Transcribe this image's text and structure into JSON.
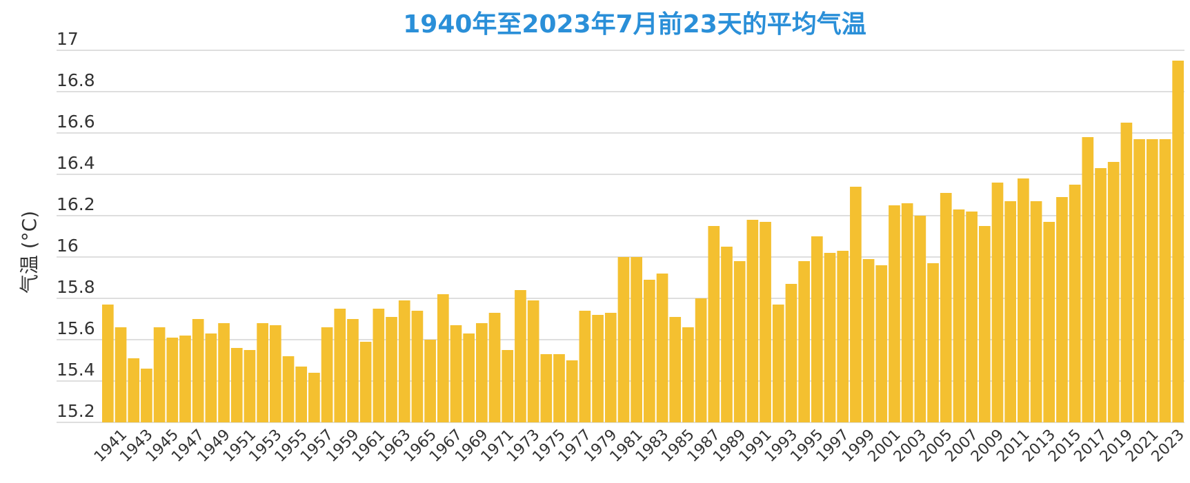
{
  "chart_data": {
    "type": "bar",
    "title": "1940年至2023年7月前23天的平均气温",
    "ylabel": "气温 (°C)",
    "xlabel": "",
    "ylim": [
      15.2,
      17.0
    ],
    "yticks": [
      "15.2",
      "15.4",
      "15.6",
      "15.8",
      "16",
      "16.2",
      "16.4",
      "16.6",
      "16.8",
      "17"
    ],
    "grid": true,
    "bar_color": "#f4c030",
    "title_color": "#2a8fd8",
    "categories": [
      "1940",
      "1941",
      "1942",
      "1943",
      "1944",
      "1945",
      "1946",
      "1947",
      "1948",
      "1949",
      "1950",
      "1951",
      "1952",
      "1953",
      "1954",
      "1955",
      "1956",
      "1957",
      "1958",
      "1959",
      "1960",
      "1961",
      "1962",
      "1963",
      "1964",
      "1965",
      "1966",
      "1967",
      "1968",
      "1969",
      "1970",
      "1971",
      "1972",
      "1973",
      "1974",
      "1975",
      "1976",
      "1977",
      "1978",
      "1979",
      "1980",
      "1981",
      "1982",
      "1983",
      "1984",
      "1985",
      "1986",
      "1987",
      "1988",
      "1989",
      "1990",
      "1991",
      "1992",
      "1993",
      "1994",
      "1995",
      "1996",
      "1997",
      "1998",
      "1999",
      "2000",
      "2001",
      "2002",
      "2003",
      "2004",
      "2005",
      "2006",
      "2007",
      "2008",
      "2009",
      "2010",
      "2011",
      "2012",
      "2013",
      "2014",
      "2015",
      "2016",
      "2017",
      "2018",
      "2019",
      "2020",
      "2021",
      "2022",
      "2023"
    ],
    "x_tick_labels": [
      "1941",
      "1943",
      "1945",
      "1947",
      "1949",
      "1951",
      "1953",
      "1955",
      "1957",
      "1959",
      "1961",
      "1963",
      "1965",
      "1967",
      "1969",
      "1971",
      "1973",
      "1975",
      "1977",
      "1979",
      "1981",
      "1983",
      "1985",
      "1987",
      "1989",
      "1991",
      "1993",
      "1995",
      "1997",
      "1999",
      "2001",
      "2003",
      "2005",
      "2007",
      "2009",
      "2011",
      "2013",
      "2015",
      "2017",
      "2019",
      "2021",
      "2023"
    ],
    "values": [
      15.77,
      15.66,
      15.51,
      15.46,
      15.66,
      15.61,
      15.62,
      15.7,
      15.63,
      15.68,
      15.56,
      15.55,
      15.68,
      15.67,
      15.52,
      15.47,
      15.44,
      15.66,
      15.75,
      15.7,
      15.59,
      15.75,
      15.71,
      15.79,
      15.74,
      15.6,
      15.82,
      15.67,
      15.63,
      15.68,
      15.73,
      15.55,
      15.84,
      15.79,
      15.53,
      15.53,
      15.5,
      15.74,
      15.72,
      15.73,
      16.0,
      16.0,
      15.89,
      15.92,
      15.71,
      15.66,
      15.8,
      16.15,
      16.05,
      15.98,
      16.18,
      16.17,
      15.77,
      15.87,
      15.98,
      16.1,
      16.02,
      16.03,
      16.34,
      15.99,
      15.96,
      16.25,
      16.26,
      16.2,
      15.97,
      16.31,
      16.23,
      16.22,
      16.15,
      16.36,
      16.27,
      16.38,
      16.27,
      16.17,
      16.29,
      16.35,
      16.58,
      16.43,
      16.46,
      16.65,
      16.57,
      16.57,
      16.57,
      16.95
    ]
  }
}
